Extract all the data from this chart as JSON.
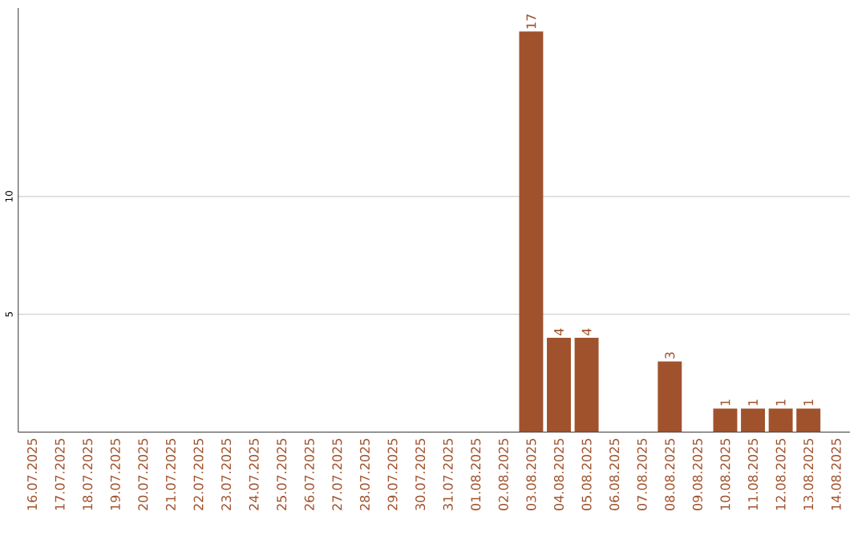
{
  "chart_data": {
    "type": "bar",
    "categories": [
      "16.07.2025",
      "17.07.2025",
      "18.07.2025",
      "19.07.2025",
      "20.07.2025",
      "21.07.2025",
      "22.07.2025",
      "23.07.2025",
      "24.07.2025",
      "25.07.2025",
      "26.07.2025",
      "27.07.2025",
      "28.07.2025",
      "29.07.2025",
      "30.07.2025",
      "31.07.2025",
      "01.08.2025",
      "02.08.2025",
      "03.08.2025",
      "04.08.2025",
      "05.08.2025",
      "06.08.2025",
      "07.08.2025",
      "08.08.2025",
      "09.08.2025",
      "10.08.2025",
      "11.08.2025",
      "12.08.2025",
      "13.08.2025",
      "14.08.2025"
    ],
    "values": [
      0,
      0,
      0,
      0,
      0,
      0,
      0,
      0,
      0,
      0,
      0,
      0,
      0,
      0,
      0,
      0,
      0,
      0,
      17,
      4,
      4,
      0,
      0,
      3,
      0,
      1,
      1,
      1,
      1,
      0
    ],
    "value_labels": [
      null,
      null,
      null,
      null,
      null,
      null,
      null,
      null,
      null,
      null,
      null,
      null,
      null,
      null,
      null,
      null,
      null,
      null,
      "17",
      "4",
      "4",
      null,
      null,
      "3",
      null,
      "1",
      "1",
      "1",
      "1",
      null
    ],
    "color": "#a0522d",
    "ylim": [
      0,
      18
    ],
    "yticks": [
      5,
      10
    ],
    "grid": "y"
  }
}
